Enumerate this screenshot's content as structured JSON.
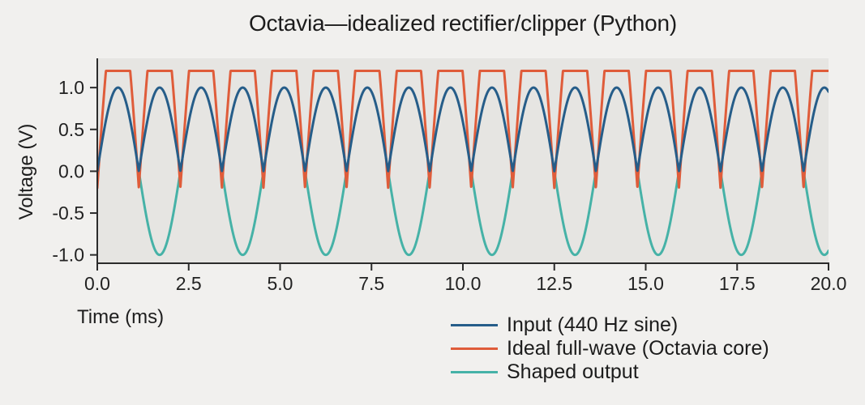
{
  "chart_data": {
    "type": "line",
    "title": "Octavia—idealized rectifier/clipper (Python)",
    "xlabel": "Time (ms)",
    "ylabel": "Voltage (V)",
    "xlim": [
      0,
      20
    ],
    "ylim": [
      -1.1,
      1.35
    ],
    "grid": false,
    "plot_background": "#e6e5e2",
    "figure_background": "#f1f0ee",
    "axis_color": "#2b2b2b",
    "tick_label_color": "#222222",
    "xticks": {
      "values": [
        0,
        2.5,
        5,
        7.5,
        10,
        12.5,
        15,
        17.5,
        20
      ],
      "labels": [
        "0.0",
        "2.5",
        "5.0",
        "7.5",
        "10.0",
        "12.5",
        "15.0",
        "17.5",
        "20.0"
      ]
    },
    "yticks": {
      "values": [
        1.0,
        0.5,
        0.0,
        -0.5,
        -1.0
      ],
      "labels": [
        "1.0",
        "0.5",
        "0.0",
        "-0.5",
        "-1.0"
      ]
    },
    "signal": {
      "frequency_hz": 440,
      "frequency_cycles_per_ms": 0.44,
      "time_span_ms": 20
    },
    "series": [
      {
        "key": "shaped_output",
        "name": "Shaped output",
        "color": "#46b2a7",
        "line_width": 3,
        "waveform": "negative_half_sine",
        "amplitude": 1.0,
        "min_v": -1.0,
        "max_v": 0.0
      },
      {
        "key": "ideal_full_wave",
        "name": "Ideal full-wave (Octavia core)",
        "color": "#df5c3a",
        "line_width": 3,
        "waveform": "clipped_full_wave",
        "gain": 2.3,
        "offset": -0.2,
        "clip_max": 1.2,
        "min_v": -0.2,
        "max_v": 1.2
      },
      {
        "key": "input_sine",
        "name": "Input (440 Hz sine)",
        "color": "#265d89",
        "line_width": 3,
        "waveform": "abs_sine",
        "amplitude": 1.0,
        "min_v": 0.0,
        "max_v": 1.0
      }
    ],
    "legend_order": [
      "input_sine",
      "ideal_full_wave",
      "shaped_output"
    ],
    "legend_position": "below axes, right side, no frame"
  }
}
